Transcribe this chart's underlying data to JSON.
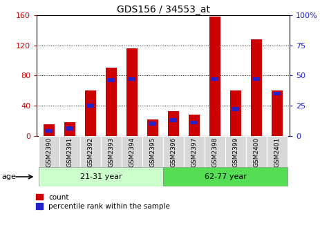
{
  "title": "GDS156 / 34553_at",
  "samples": [
    "GSM2390",
    "GSM2391",
    "GSM2392",
    "GSM2393",
    "GSM2394",
    "GSM2395",
    "GSM2396",
    "GSM2397",
    "GSM2398",
    "GSM2399",
    "GSM2400",
    "GSM2401"
  ],
  "count_values": [
    15,
    18,
    60,
    90,
    116,
    22,
    33,
    28,
    158,
    60,
    128,
    60
  ],
  "percentile_values": [
    4,
    6,
    25,
    46,
    47,
    10,
    13,
    11,
    47,
    22,
    47,
    35
  ],
  "group1_label": "21-31 year",
  "group2_label": "62-77 year",
  "ylim_left": [
    0,
    160
  ],
  "ylim_right": [
    0,
    100
  ],
  "yticks_left": [
    0,
    40,
    80,
    120,
    160
  ],
  "yticks_right": [
    0,
    25,
    50,
    75,
    100
  ],
  "bar_color": "#cc0000",
  "percentile_color": "#2222cc",
  "group1_color": "#ccffcc",
  "group2_color": "#55dd55",
  "label_color_left": "#cc0000",
  "label_color_right": "#2222cc",
  "bar_width": 0.55,
  "pct_bar_width": 0.35,
  "pct_bar_height": 5
}
